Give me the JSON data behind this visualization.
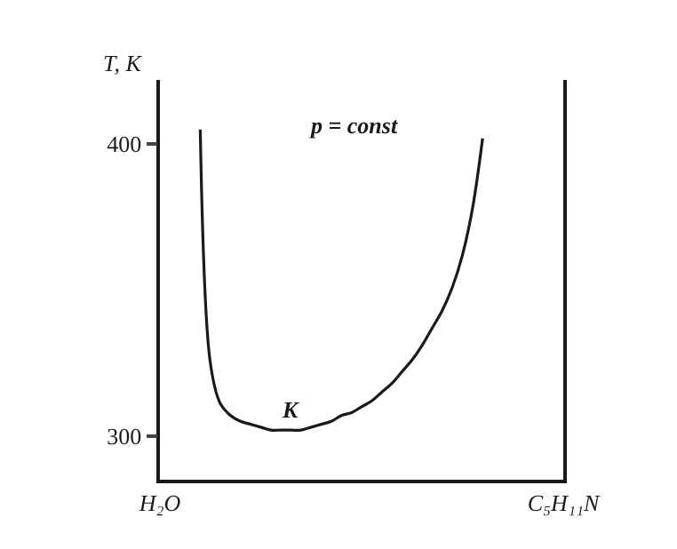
{
  "chart_data": {
    "type": "line",
    "ylabel": "T, K",
    "categories": [
      "H₂O",
      null,
      null,
      null,
      null,
      null,
      null,
      null,
      null,
      null,
      null,
      null,
      null,
      null,
      null,
      null,
      null,
      null,
      null,
      null,
      null,
      null,
      null,
      null,
      null,
      null,
      null,
      null,
      null,
      null,
      null,
      null,
      null,
      null,
      null,
      null,
      null,
      null,
      null,
      null,
      "C₅H₁₁N"
    ],
    "series": [
      {
        "color": "#1a1a1a",
        "values": [
          null,
          null,
          null,
          null,
          405,
          325,
          311,
          307,
          305,
          304,
          303,
          302,
          302,
          302,
          302,
          303,
          304,
          305,
          307,
          308,
          310,
          312,
          315,
          318,
          322,
          326,
          331,
          337,
          343,
          351,
          362,
          378,
          402,
          null,
          null,
          null,
          null,
          null,
          null,
          null,
          null
        ]
      }
    ],
    "ylim": [
      285,
      422
    ],
    "yticks": [
      300,
      400
    ],
    "annotations": [
      "p = const",
      {
        "text": "K",
        "y": 302
      }
    ],
    "marker": "none",
    "line_style": "solid"
  }
}
